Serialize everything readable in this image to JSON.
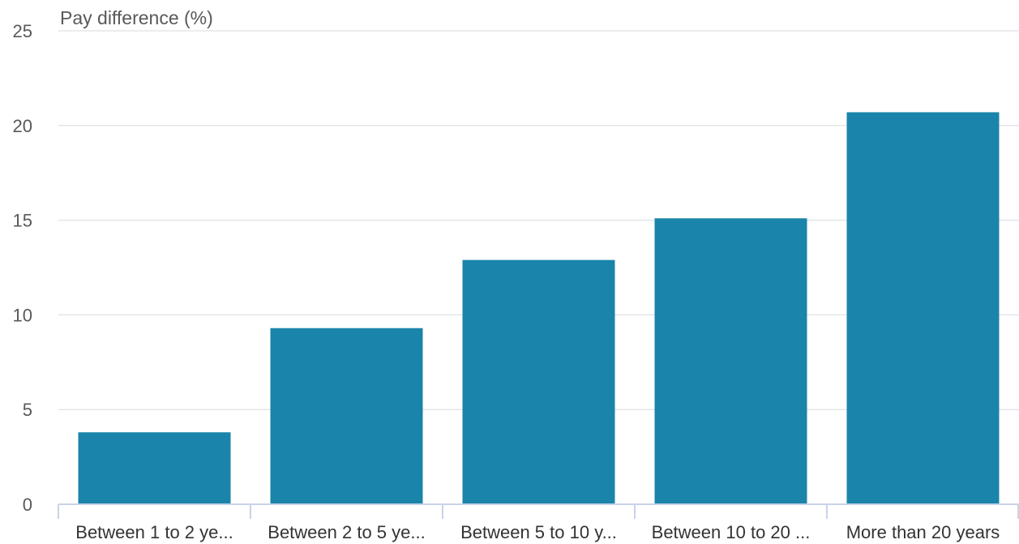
{
  "chart_data": {
    "type": "bar",
    "title": "",
    "xlabel": "",
    "ylabel": "Pay difference (%)",
    "categories": [
      "Between 1 to 2 ye...",
      "Between 2 to 5 ye...",
      "Between 5 to 10 y...",
      "Between 10 to 20 ...",
      "More than 20 years"
    ],
    "values": [
      3.8,
      9.3,
      12.9,
      15.1,
      20.7
    ],
    "ylim": [
      0,
      25
    ],
    "yticks": [
      "0",
      "5",
      "10",
      "15",
      "20",
      "25"
    ],
    "grid": true,
    "legend": "none",
    "colors": {
      "bar": "#1b84aa",
      "grid": "#e3e6ea",
      "axis": "#c9d3e6"
    }
  }
}
